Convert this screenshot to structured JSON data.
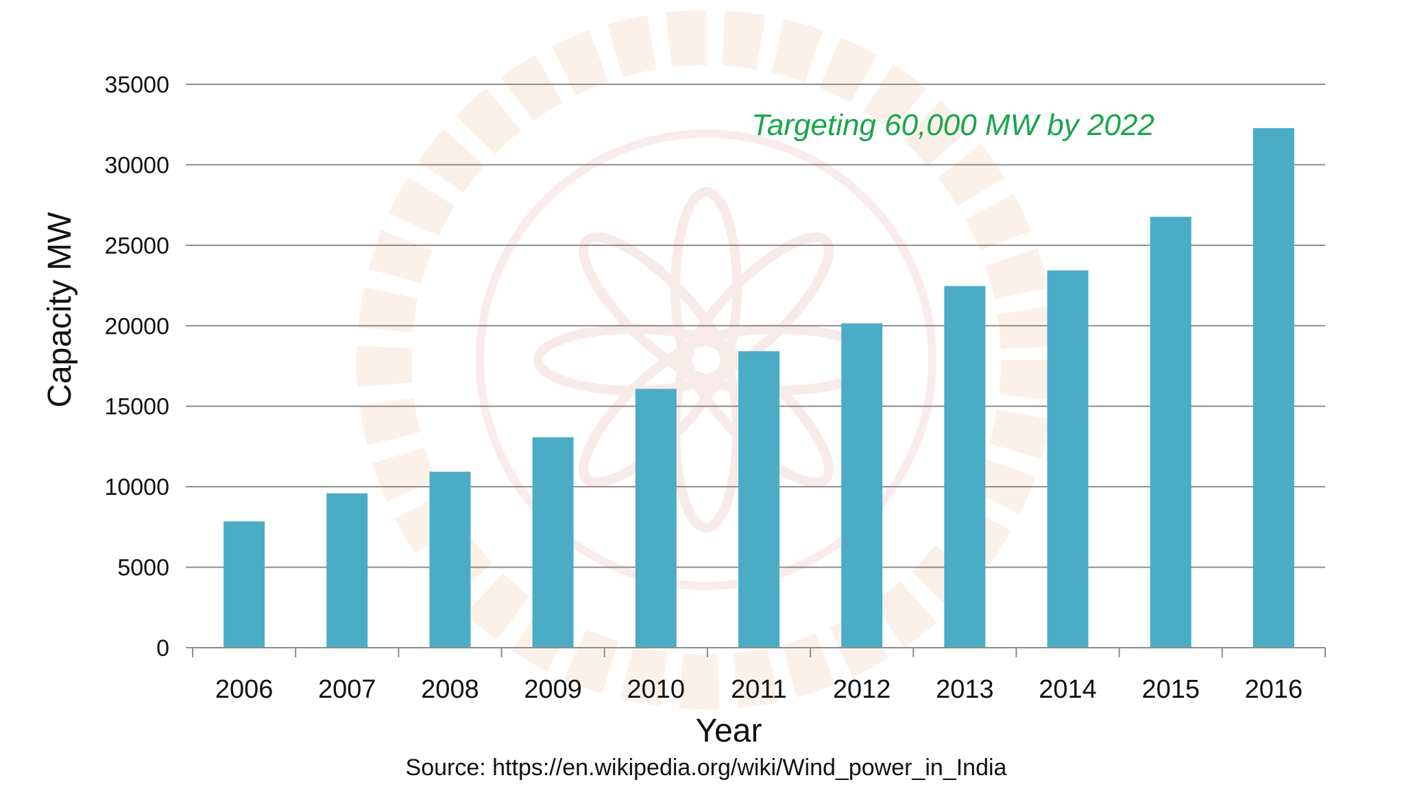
{
  "chart_data": {
    "type": "bar",
    "title": "",
    "xlabel": "Year",
    "ylabel": "Capacity MW",
    "categories": [
      "2006",
      "2007",
      "2008",
      "2009",
      "2010",
      "2011",
      "2012",
      "2013",
      "2014",
      "2015",
      "2016"
    ],
    "values": [
      7850,
      9590,
      10930,
      13070,
      16080,
      18420,
      20150,
      22470,
      23440,
      26770,
      32280
    ],
    "ylim": [
      0,
      35000
    ],
    "yticks": [
      "0",
      "5000",
      "10000",
      "15000",
      "20000",
      "25000",
      "30000",
      "35000"
    ],
    "grid": true,
    "annotation": "Targeting 60,000 MW by 2022",
    "source": "Source: https://en.wikipedia.org/wiki/Wind_power_in_India",
    "colors": {
      "bar": "#4BACC6",
      "annotation": "#19A64B",
      "grid": "#8C8C8C",
      "axis": "#8C8C8C"
    }
  }
}
